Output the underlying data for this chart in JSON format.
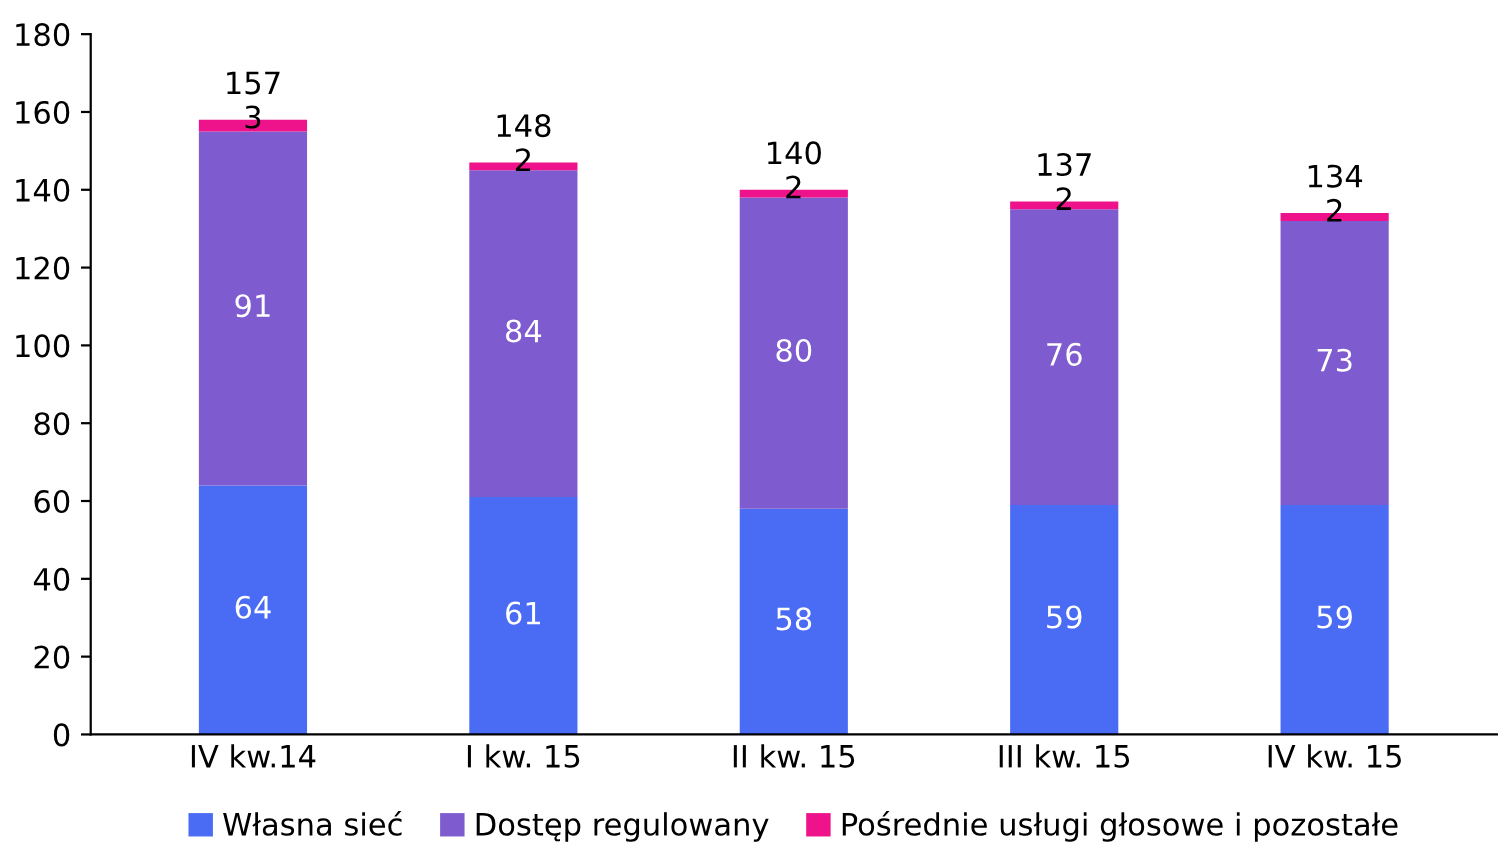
{
  "chart_data": {
    "type": "bar",
    "stacked": true,
    "categories": [
      "IV kw.14",
      "I kw. 15",
      "II kw. 15",
      "III kw. 15",
      "IV kw. 15"
    ],
    "series": [
      {
        "name": "Własna sieć",
        "color": "#4a6cf5",
        "values": [
          64,
          61,
          58,
          59,
          59
        ]
      },
      {
        "name": "Dostęp regulowany",
        "color": "#7f5bd0",
        "values": [
          91,
          84,
          80,
          76,
          73
        ]
      },
      {
        "name": "Pośrednie usługi głosowe i pozostałe",
        "color": "#ee138a",
        "values": [
          3,
          2,
          2,
          2,
          2
        ]
      }
    ],
    "data_labels": true,
    "totals": [
      "157",
      "148",
      "140",
      "137",
      "134"
    ],
    "ylim": [
      0,
      180
    ],
    "yticks": [
      0,
      20,
      40,
      60,
      80,
      100,
      120,
      140,
      160,
      180
    ],
    "grid": false,
    "legend": "bottom"
  }
}
